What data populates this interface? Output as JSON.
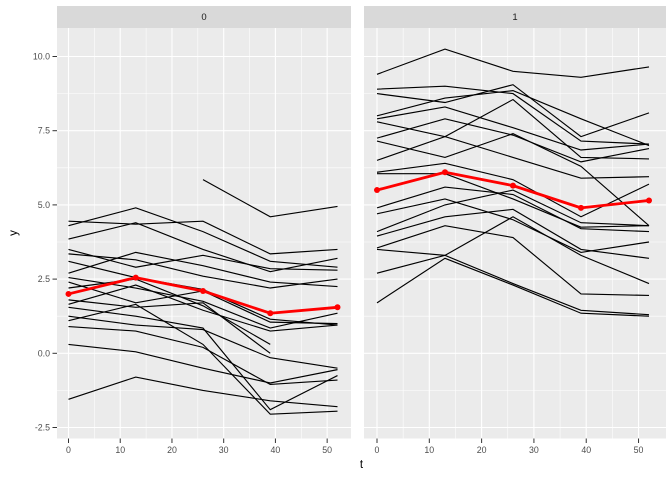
{
  "colors": {
    "background": "#ffffff",
    "panel_background": "#ebebeb",
    "strip_background": "#d9d9d9",
    "grid": "#ffffff",
    "series_line": "#000000",
    "mean_line": "#ff0000",
    "axis_text": "#4d4d4d",
    "tick_mark": "#333333",
    "title_text": "#000000",
    "strip_text": "#1a1a1a"
  },
  "chart_data": {
    "type": "line",
    "title": "",
    "xlabel": "t",
    "ylabel": "y",
    "facet_variable_values": [
      "0",
      "1"
    ],
    "x": [
      0,
      13,
      26,
      39,
      52
    ],
    "x_ticks": [
      0,
      10,
      20,
      30,
      40,
      50
    ],
    "x_tick_labels": [
      "0",
      "10",
      "20",
      "30",
      "40",
      "50"
    ],
    "x_minor_ticks": [
      5,
      15,
      25,
      35,
      45
    ],
    "y_ticks": [
      -2.5,
      0.0,
      2.5,
      5.0,
      7.5,
      10.0
    ],
    "y_tick_labels": [
      "-2.5",
      "0.0",
      "2.5",
      "5.0",
      "7.5",
      "10.0"
    ],
    "y_minor_ticks": [
      -1.25,
      1.25,
      3.75,
      6.25,
      8.75
    ],
    "xlim": [
      -2.6,
      54.6
    ],
    "ylim": [
      -2.9,
      10.9
    ],
    "grid": true,
    "legend": "none",
    "panels": [
      {
        "label": "0",
        "mean_series": [
          2.0,
          2.55,
          2.1,
          1.35,
          1.55
        ],
        "lines": [
          [
            4.45,
            4.35,
            4.45,
            3.35,
            3.5
          ],
          [
            4.3,
            4.9,
            4.1,
            3.1,
            2.9
          ],
          [
            3.85,
            4.4,
            3.5,
            2.75,
            3.2
          ],
          [
            3.5,
            2.9,
            3.3,
            2.85,
            2.8
          ],
          [
            3.35,
            3.15,
            2.6,
            2.2,
            2.5
          ],
          [
            3.1,
            2.55,
            2.15,
            1.15,
            0.95
          ],
          [
            2.7,
            3.4,
            2.95,
            2.4,
            2.25
          ],
          [
            2.55,
            2.2,
            1.75,
            0.85,
            1.35
          ],
          [
            2.4,
            1.7,
            2.1,
            1.05,
            1.0
          ],
          [
            2.2,
            2.5,
            1.6,
            0.3,
            null
          ],
          [
            1.8,
            1.55,
            1.7,
            0.0,
            null
          ],
          [
            1.65,
            2.3,
            1.45,
            0.75,
            0.95
          ],
          [
            1.55,
            1.25,
            0.85,
            -1.9,
            -0.75
          ],
          [
            1.25,
            0.95,
            0.8,
            -0.15,
            -0.5
          ],
          [
            1.1,
            1.65,
            0.3,
            -2.05,
            -1.95
          ],
          [
            0.9,
            0.75,
            0.2,
            -1.05,
            -0.9
          ],
          [
            0.3,
            0.05,
            -0.5,
            -1.0,
            -0.55
          ],
          [
            -1.55,
            -0.8,
            -1.25,
            -1.6,
            -1.8
          ],
          [
            null,
            null,
            5.85,
            4.6,
            4.95
          ]
        ]
      },
      {
        "label": "1",
        "mean_series": [
          5.5,
          6.1,
          5.65,
          4.9,
          5.15
        ],
        "lines": [
          [
            9.4,
            10.25,
            9.5,
            9.3,
            9.65
          ],
          [
            8.9,
            9.0,
            8.75,
            7.15,
            7.05
          ],
          [
            8.75,
            8.45,
            9.05,
            7.3,
            8.1
          ],
          [
            8.0,
            8.6,
            8.85,
            7.9,
            7.0
          ],
          [
            7.9,
            8.3,
            7.6,
            6.85,
            7.05
          ],
          [
            7.8,
            7.3,
            8.55,
            6.6,
            6.55
          ],
          [
            7.25,
            7.9,
            7.35,
            6.45,
            6.9
          ],
          [
            7.15,
            6.6,
            7.4,
            6.3,
            4.3
          ],
          [
            6.5,
            7.3,
            6.6,
            5.9,
            5.95
          ],
          [
            6.1,
            6.4,
            5.85,
            4.6,
            5.7
          ],
          [
            6.05,
            6.05,
            5.2,
            4.25,
            4.3
          ],
          [
            4.9,
            5.6,
            5.35,
            4.2,
            4.1
          ],
          [
            4.7,
            5.2,
            4.5,
            3.4,
            3.75
          ],
          [
            4.1,
            5.0,
            5.5,
            4.4,
            4.3
          ],
          [
            3.95,
            4.6,
            4.85,
            3.5,
            3.2
          ],
          [
            3.55,
            4.3,
            3.9,
            2.0,
            1.95
          ],
          [
            3.5,
            3.3,
            4.6,
            3.3,
            2.35
          ],
          [
            2.7,
            3.3,
            2.35,
            1.45,
            1.3
          ],
          [
            1.7,
            3.2,
            2.3,
            1.35,
            1.25
          ]
        ]
      }
    ]
  }
}
